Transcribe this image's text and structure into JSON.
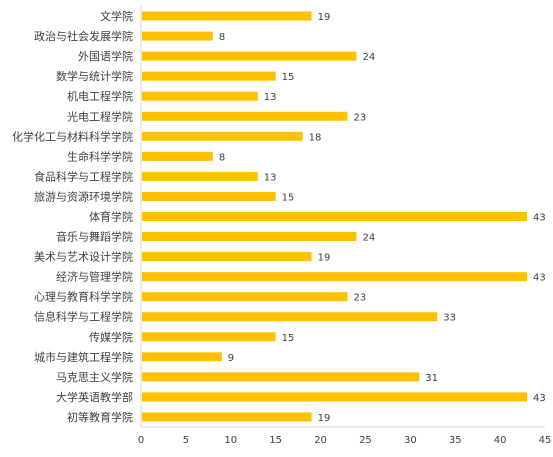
{
  "chart_data": {
    "type": "bar",
    "orientation": "horizontal",
    "title": "",
    "xlabel": "",
    "ylabel": "",
    "categories": [
      "文学院",
      "政治与社会发展学院",
      "外国语学院",
      "数学与统计学院",
      "机电工程学院",
      "光电工程学院",
      "化学化工与材料科学学院",
      "生命科学学院",
      "食品科学与工程学院",
      "旅游与资源环境学院",
      "体育学院",
      "音乐与舞蹈学院",
      "美术与艺术设计学院",
      "经济与管理学院",
      "心理与教育科学学院",
      "信息科学与工程学院",
      "传媒学院",
      "城市与建筑工程学院",
      "马克思主义学院",
      "大学英语教学部",
      "初等教育学院"
    ],
    "values": [
      19,
      8,
      24,
      15,
      13,
      23,
      18,
      8,
      13,
      15,
      43,
      24,
      19,
      43,
      23,
      33,
      15,
      9,
      31,
      43,
      19
    ],
    "xlim": [
      0,
      45
    ],
    "x_ticks": [
      0,
      5,
      10,
      15,
      20,
      25,
      30,
      35,
      40,
      45
    ],
    "data_labels": true,
    "grid": false,
    "colors": {
      "bar": "#FFC000",
      "axis": "#D9D9D9",
      "text": "#404040"
    }
  }
}
